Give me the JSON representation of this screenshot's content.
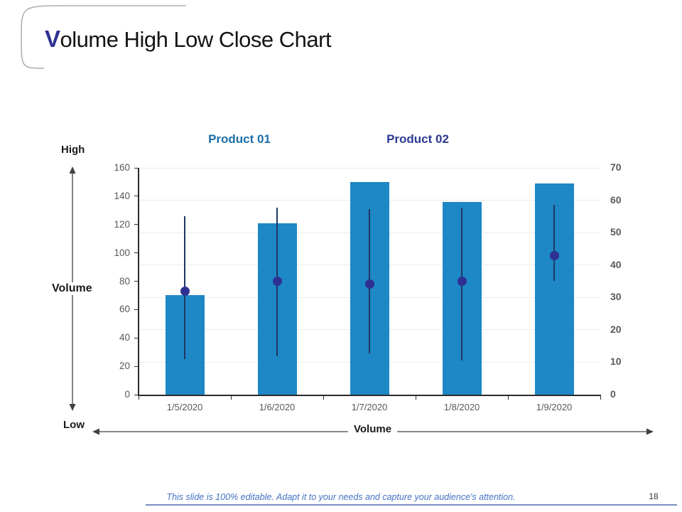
{
  "slide": {
    "title": {
      "first_letter": "V",
      "rest": "olume High Low Close Chart"
    },
    "footer_text": "This slide is 100% editable. Adapt it to your needs and capture your audience's attention.",
    "page_number": "18"
  },
  "labels": {
    "product1": "Product 01",
    "product2": "Product 02",
    "high": "High",
    "low": "Low",
    "volume_left": "Volume",
    "volume_bottom": "Volume"
  },
  "colors": {
    "title_accent": "#2e3192",
    "title_text": "#141414",
    "product1": "#1b6fa8",
    "product2": "#2b3990",
    "bar": "#1e87c6",
    "hl_line": "#1f3864",
    "close_dot": "#2e3192",
    "axis_text": "#595959",
    "axis_line": "#2b2b2b",
    "gridline": "#ececec",
    "arrow": "#404040",
    "footer_text": "#4472c4",
    "corner_curve": "#b0b0b0"
  },
  "chart_data": {
    "type": "bar",
    "title": "",
    "xlabel": "Volume",
    "ylabel_concept": "Volume (Low to High)",
    "categories": [
      "1/5/2020",
      "1/6/2020",
      "1/7/2020",
      "1/8/2020",
      "1/9/2020"
    ],
    "series": [
      {
        "name": "Volume (bar)",
        "values": [
          70,
          121,
          150,
          136,
          149
        ]
      },
      {
        "name": "High",
        "values": [
          126,
          132,
          131,
          132,
          134
        ]
      },
      {
        "name": "Low",
        "values": [
          25,
          27,
          29,
          24,
          80
        ]
      },
      {
        "name": "Close (dot)",
        "values": [
          73,
          80,
          78,
          80,
          98
        ]
      }
    ],
    "left_axis": {
      "min": 0,
      "max": 160,
      "step": 20,
      "ticks": [
        "160",
        "140",
        "120",
        "100",
        "80",
        "60",
        "40",
        "20",
        "0"
      ]
    },
    "right_axis": {
      "min": 0,
      "max": 70,
      "step": 10,
      "ticks": [
        "70",
        "60",
        "50",
        "40",
        "30",
        "20",
        "10",
        "0"
      ]
    },
    "grid": "horizontal gridlines aligned to right axis steps",
    "legend_position": "none",
    "group_headers": [
      "Product 01",
      "Product 02"
    ]
  }
}
